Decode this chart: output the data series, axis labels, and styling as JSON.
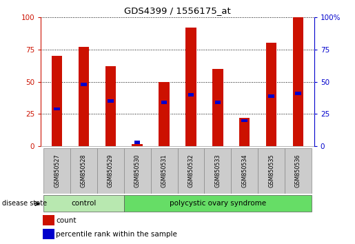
{
  "title": "GDS4399 / 1556175_at",
  "samples": [
    "GSM850527",
    "GSM850528",
    "GSM850529",
    "GSM850530",
    "GSM850531",
    "GSM850532",
    "GSM850533",
    "GSM850534",
    "GSM850535",
    "GSM850536"
  ],
  "count_values": [
    70,
    77,
    62,
    2,
    50,
    92,
    60,
    22,
    80,
    100
  ],
  "percentile_values": [
    29,
    48,
    35,
    3,
    34,
    40,
    34,
    20,
    39,
    41
  ],
  "group_labels": [
    "control",
    "polycystic ovary syndrome"
  ],
  "group_starts": [
    0,
    3
  ],
  "group_ends": [
    3,
    10
  ],
  "group_colors": [
    "#b8e8b0",
    "#66dd66"
  ],
  "bar_color": "#cc1100",
  "percentile_color": "#0000cc",
  "ylim": [
    0,
    100
  ],
  "yticks": [
    0,
    25,
    50,
    75,
    100
  ],
  "left_ycolor": "#cc1100",
  "right_ycolor": "#0000cc",
  "bar_width": 0.4,
  "legend_count_label": "count",
  "legend_percentile_label": "percentile rank within the sample",
  "disease_state_label": "disease state",
  "sample_box_color": "#cccccc",
  "sample_box_edge": "#888888"
}
